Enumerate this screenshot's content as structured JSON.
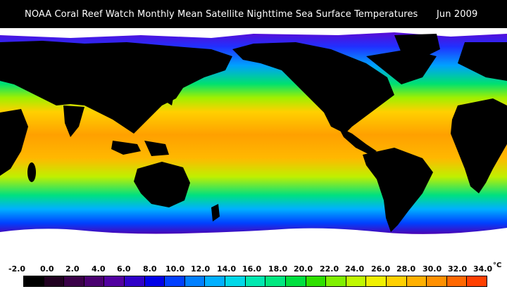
{
  "header": {
    "title": "NOAA Coral Reef Watch Monthly Mean Satellite Nighttime Sea Surface Temperatures",
    "date": "Jun 2009"
  },
  "legend": {
    "unit": "°C",
    "ticks": [
      "-2.0",
      "0.0",
      "2.0",
      "4.0",
      "6.0",
      "8.0",
      "10.0",
      "12.0",
      "14.0",
      "16.0",
      "18.0",
      "20.0",
      "22.0",
      "24.0",
      "26.0",
      "28.0",
      "30.0",
      "32.0",
      "34.0"
    ],
    "colors": [
      "#000000",
      "#200020",
      "#3a0048",
      "#4a0070",
      "#5200a0",
      "#3000c8",
      "#0000e8",
      "#0040ff",
      "#0080ff",
      "#00b0ff",
      "#00d8e8",
      "#00e8b0",
      "#00e880",
      "#00e040",
      "#30e000",
      "#80f000",
      "#c0f800",
      "#f0f000",
      "#ffd000",
      "#ffb000",
      "#ff9000",
      "#ff6800",
      "#ff4000"
    ]
  },
  "map": {
    "land_color": "#000000",
    "ice_color": "#ffffff"
  }
}
